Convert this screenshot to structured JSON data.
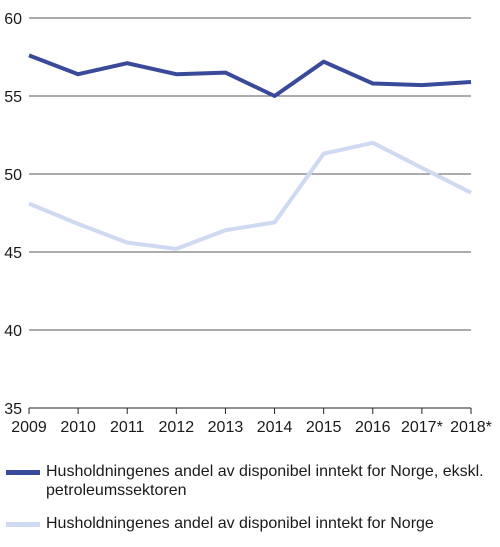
{
  "chart_data": {
    "type": "line",
    "categories": [
      "2009",
      "2010",
      "2011",
      "2012",
      "2013",
      "2014",
      "2015",
      "2016",
      "2017*",
      "2018*"
    ],
    "ylim": [
      35,
      60
    ],
    "yticks": [
      35,
      40,
      45,
      50,
      55,
      60
    ],
    "grid": true,
    "legend_position": "bottom",
    "series": [
      {
        "name": "Husholdningenes andel av disponibel inntekt for Norge, ekskl. petroleumssektoren",
        "color": "#3a4a9a",
        "values": [
          57.6,
          56.4,
          57.1,
          56.4,
          56.5,
          55.0,
          57.2,
          55.8,
          55.7,
          55.9
        ]
      },
      {
        "name": "Husholdningenes andel av disponibel inntekt for Norge",
        "color": "#cfd9f2",
        "values": [
          48.1,
          46.8,
          45.6,
          45.2,
          46.4,
          46.9,
          51.3,
          52.0,
          50.4,
          48.8
        ]
      }
    ]
  }
}
